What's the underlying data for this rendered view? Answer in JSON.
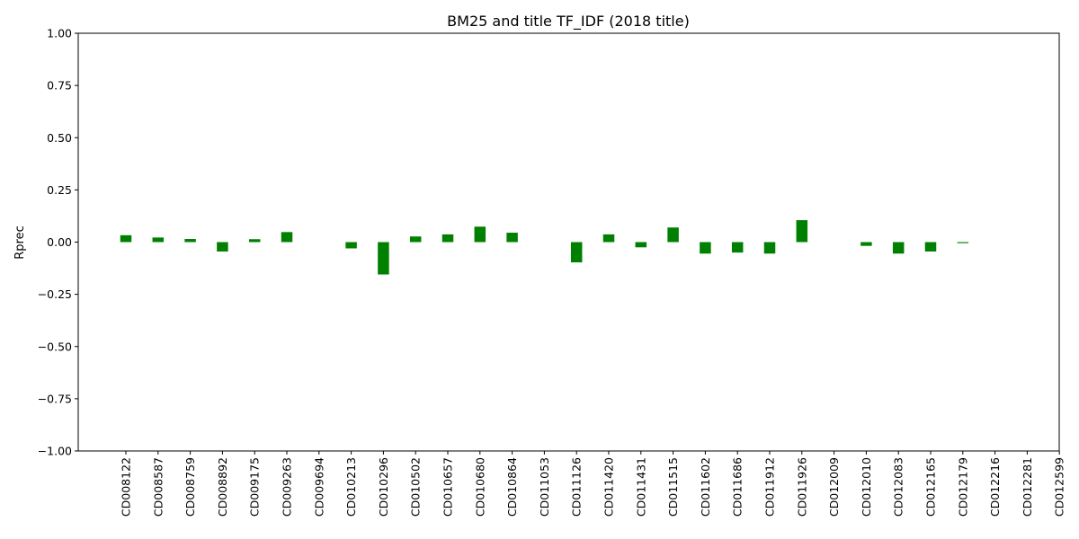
{
  "chart_data": {
    "type": "bar",
    "title": "BM25 and title TF_IDF (2018 title)",
    "xlabel": "",
    "ylabel": "Rprec",
    "ylim": [
      -1.0,
      1.0
    ],
    "yticks": [
      1.0,
      0.75,
      0.5,
      0.25,
      0.0,
      -0.25,
      -0.5,
      -0.75,
      -1.0
    ],
    "ytick_labels": [
      "1.00",
      "0.75",
      "0.50",
      "0.25",
      "0.00",
      "−0.25",
      "−0.50",
      "−0.75",
      "−1.00"
    ],
    "bar_color": "#008000",
    "grid": false,
    "categories": [
      "CD008122",
      "CD008587",
      "CD008759",
      "CD008892",
      "CD009175",
      "CD009263",
      "CD009694",
      "CD010213",
      "CD010296",
      "CD010502",
      "CD010657",
      "CD010680",
      "CD010864",
      "CD011053",
      "CD011126",
      "CD011420",
      "CD011431",
      "CD011515",
      "CD011602",
      "CD011686",
      "CD011912",
      "CD011926",
      "CD012009",
      "CD012010",
      "CD012083",
      "CD012165",
      "CD012179",
      "CD012216",
      "CD012281",
      "CD012599"
    ],
    "values": [
      0.033,
      0.022,
      0.015,
      -0.045,
      0.014,
      0.048,
      0.0,
      -0.03,
      -0.155,
      0.027,
      0.037,
      0.074,
      0.045,
      0.0,
      -0.097,
      0.037,
      -0.025,
      0.07,
      -0.055,
      -0.05,
      -0.055,
      0.105,
      0.0,
      -0.018,
      -0.055,
      -0.045,
      -0.005,
      0.0,
      0.0,
      0.0
    ]
  }
}
